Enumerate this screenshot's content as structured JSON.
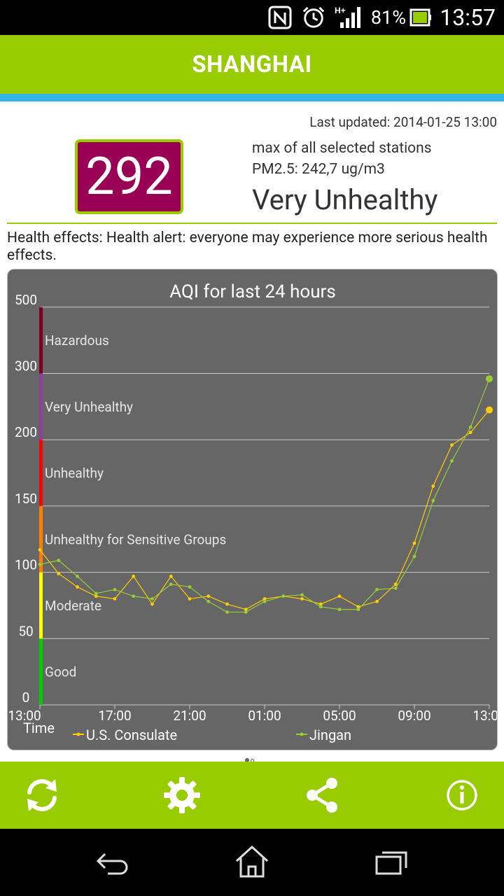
{
  "status_bar": {
    "battery_percent": "81%",
    "time": "13:57",
    "icons": [
      "nfc-icon",
      "alarm-icon",
      "signal-icon",
      "battery-icon"
    ]
  },
  "app_bar": {
    "title": "SHANGHAI"
  },
  "summary": {
    "last_updated": "Last updated: 2014-01-25 13:00",
    "aqi_value": "292",
    "aqi_color": "#990055",
    "station_note": "max of all selected stations",
    "pm_note": "PM2.5: 242,7 ug/m3",
    "level": "Very Unhealthy",
    "health_effects": "Health effects: Health alert: everyone may experience more serious health effects."
  },
  "chart_data": {
    "type": "line",
    "title": "AQI for last 24 hours",
    "xlabel": "Time",
    "ylabel": "",
    "x_tick_labels": [
      "13:00",
      "17:00",
      "21:00",
      "01:00",
      "05:00",
      "09:00",
      "13:00"
    ],
    "y_tick_labels": [
      "0",
      "50",
      "100",
      "150",
      "200",
      "300",
      "500"
    ],
    "aqi_bands": [
      {
        "name": "Good",
        "color": "#00cc00"
      },
      {
        "name": "Moderate",
        "color": "#ffff00"
      },
      {
        "name": "Unhealthy for Sensitive Groups",
        "color": "#ff7e00"
      },
      {
        "name": "Unhealthy",
        "color": "#ff0000"
      },
      {
        "name": "Very Unhealthy",
        "color": "#8f3f97"
      },
      {
        "name": "Hazardous",
        "color": "#7e0023"
      }
    ],
    "series": [
      {
        "name": "U.S. Consulate",
        "color": "#ffcc00",
        "values": [
          117,
          99,
          89,
          82,
          80,
          97,
          76,
          97,
          80,
          82,
          76,
          72,
          80,
          82,
          80,
          76,
          82,
          74,
          78,
          91,
          122,
          165,
          196,
          211,
          245
        ]
      },
      {
        "name": "Jingan",
        "color": "#99cc33",
        "values": [
          106,
          109,
          97,
          84,
          87,
          82,
          80,
          91,
          89,
          78,
          70,
          70,
          78,
          82,
          83,
          74,
          72,
          72,
          87,
          88,
          112,
          154,
          184,
          219,
          292
        ]
      }
    ],
    "grid": true,
    "legend": "bottom"
  },
  "bottom_bar": {
    "buttons": [
      "refresh-icon",
      "settings-icon",
      "share-icon",
      "info-icon"
    ]
  },
  "nav_bar": {
    "buttons": [
      "back-icon",
      "home-icon",
      "recents-icon"
    ]
  }
}
